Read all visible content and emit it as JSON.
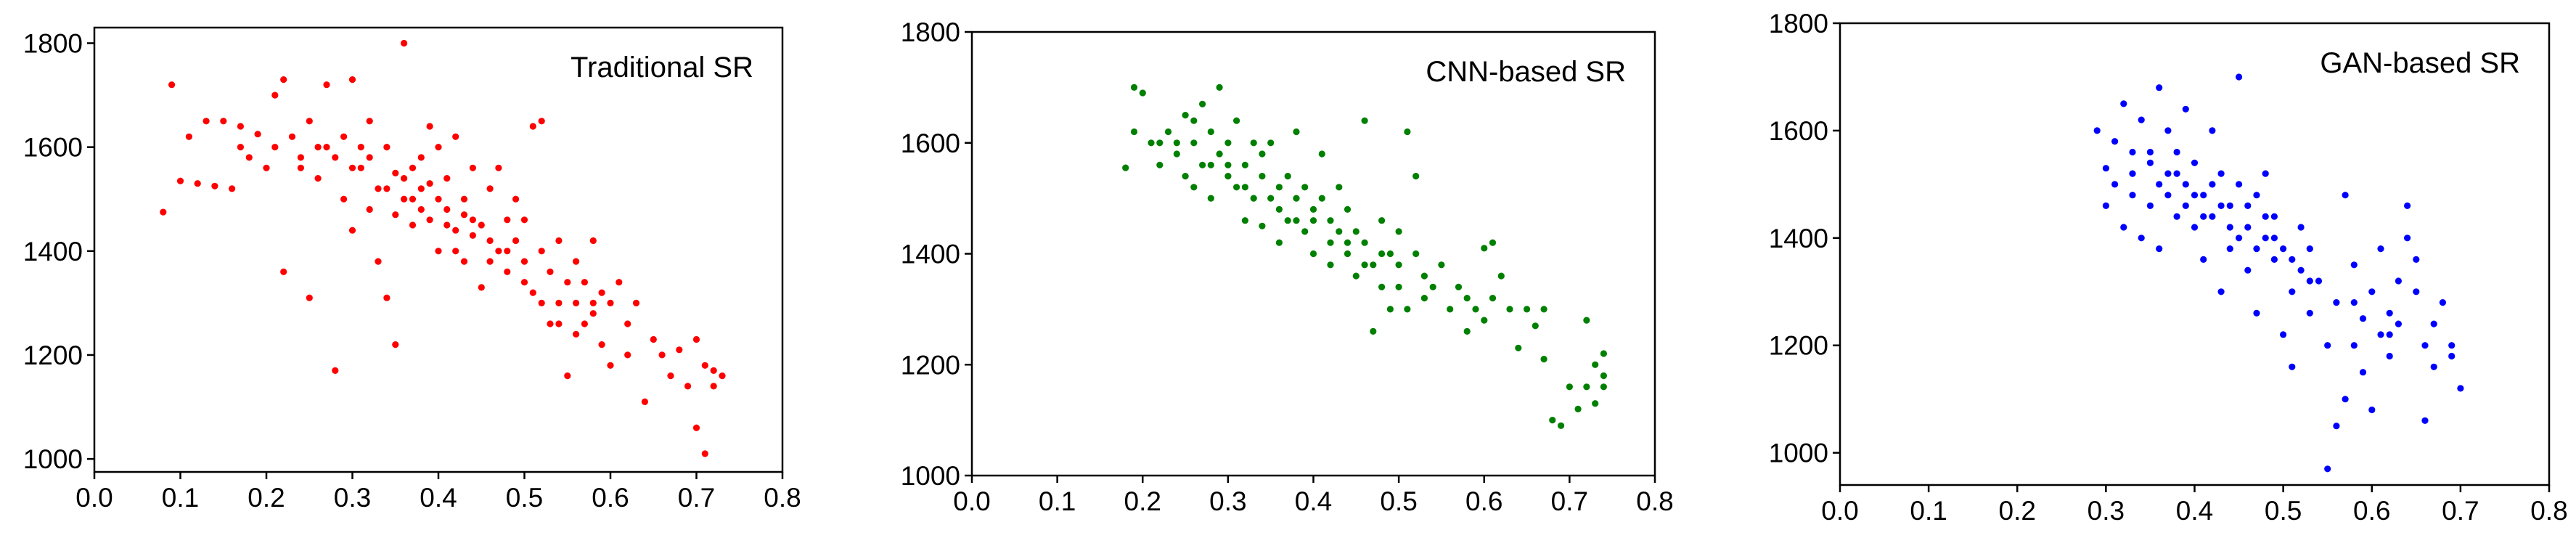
{
  "chart_data": [
    {
      "type": "scatter",
      "title": "Traditional SR",
      "color": "#ff0000",
      "xlim": [
        0.0,
        0.8
      ],
      "ylim": [
        975,
        1830
      ],
      "xticks": [
        "0.0",
        "0.1",
        "0.2",
        "0.3",
        "0.4",
        "0.5",
        "0.6",
        "0.7",
        "0.8"
      ],
      "yticks": [
        "1000",
        "1200",
        "1400",
        "1600",
        "1800"
      ],
      "points": [
        [
          0.08,
          1475
        ],
        [
          0.09,
          1720
        ],
        [
          0.1,
          1535
        ],
        [
          0.11,
          1620
        ],
        [
          0.12,
          1530
        ],
        [
          0.13,
          1650
        ],
        [
          0.14,
          1525
        ],
        [
          0.15,
          1650
        ],
        [
          0.16,
          1520
        ],
        [
          0.17,
          1640
        ],
        [
          0.17,
          1600
        ],
        [
          0.18,
          1580
        ],
        [
          0.19,
          1625
        ],
        [
          0.2,
          1560
        ],
        [
          0.21,
          1600
        ],
        [
          0.21,
          1700
        ],
        [
          0.22,
          1730
        ],
        [
          0.22,
          1360
        ],
        [
          0.23,
          1620
        ],
        [
          0.24,
          1560
        ],
        [
          0.25,
          1650
        ],
        [
          0.25,
          1310
        ],
        [
          0.26,
          1600
        ],
        [
          0.26,
          1540
        ],
        [
          0.27,
          1720
        ],
        [
          0.28,
          1580
        ],
        [
          0.28,
          1170
        ],
        [
          0.29,
          1620
        ],
        [
          0.29,
          1500
        ],
        [
          0.3,
          1730
        ],
        [
          0.3,
          1440
        ],
        [
          0.31,
          1600
        ],
        [
          0.31,
          1560
        ],
        [
          0.32,
          1480
        ],
        [
          0.32,
          1650
        ],
        [
          0.33,
          1520
        ],
        [
          0.33,
          1380
        ],
        [
          0.34,
          1600
        ],
        [
          0.34,
          1310
        ],
        [
          0.35,
          1550
        ],
        [
          0.35,
          1220
        ],
        [
          0.36,
          1800
        ],
        [
          0.36,
          1500
        ],
        [
          0.37,
          1560
        ],
        [
          0.37,
          1450
        ],
        [
          0.38,
          1580
        ],
        [
          0.38,
          1520
        ],
        [
          0.39,
          1640
        ],
        [
          0.39,
          1460
        ],
        [
          0.4,
          1600
        ],
        [
          0.4,
          1400
        ],
        [
          0.41,
          1540
        ],
        [
          0.41,
          1480
        ],
        [
          0.42,
          1620
        ],
        [
          0.42,
          1440
        ],
        [
          0.43,
          1500
        ],
        [
          0.43,
          1380
        ],
        [
          0.44,
          1560
        ],
        [
          0.44,
          1460
        ],
        [
          0.45,
          1450
        ],
        [
          0.45,
          1330
        ],
        [
          0.46,
          1520
        ],
        [
          0.46,
          1420
        ],
        [
          0.47,
          1400
        ],
        [
          0.47,
          1560
        ],
        [
          0.48,
          1460
        ],
        [
          0.48,
          1360
        ],
        [
          0.49,
          1420
        ],
        [
          0.49,
          1500
        ],
        [
          0.5,
          1380
        ],
        [
          0.5,
          1460
        ],
        [
          0.51,
          1640
        ],
        [
          0.51,
          1320
        ],
        [
          0.52,
          1400
        ],
        [
          0.52,
          1650
        ],
        [
          0.53,
          1360
        ],
        [
          0.53,
          1260
        ],
        [
          0.54,
          1420
        ],
        [
          0.54,
          1300
        ],
        [
          0.55,
          1340
        ],
        [
          0.55,
          1160
        ],
        [
          0.56,
          1300
        ],
        [
          0.56,
          1380
        ],
        [
          0.57,
          1260
        ],
        [
          0.57,
          1340
        ],
        [
          0.58,
          1280
        ],
        [
          0.58,
          1420
        ],
        [
          0.59,
          1320
        ],
        [
          0.59,
          1220
        ],
        [
          0.6,
          1300
        ],
        [
          0.6,
          1180
        ],
        [
          0.61,
          1340
        ],
        [
          0.62,
          1260
        ],
        [
          0.62,
          1200
        ],
        [
          0.63,
          1300
        ],
        [
          0.64,
          1110
        ],
        [
          0.65,
          1230
        ],
        [
          0.66,
          1200
        ],
        [
          0.67,
          1160
        ],
        [
          0.68,
          1210
        ],
        [
          0.69,
          1140
        ],
        [
          0.7,
          1060
        ],
        [
          0.7,
          1230
        ],
        [
          0.71,
          1010
        ],
        [
          0.71,
          1180
        ],
        [
          0.72,
          1140
        ],
        [
          0.72,
          1170
        ],
        [
          0.73,
          1160
        ],
        [
          0.44,
          1430
        ],
        [
          0.46,
          1380
        ],
        [
          0.4,
          1500
        ],
        [
          0.38,
          1480
        ],
        [
          0.42,
          1400
        ],
        [
          0.36,
          1540
        ],
        [
          0.34,
          1520
        ],
        [
          0.3,
          1560
        ],
        [
          0.27,
          1600
        ],
        [
          0.24,
          1580
        ],
        [
          0.32,
          1580
        ],
        [
          0.48,
          1400
        ],
        [
          0.5,
          1340
        ],
        [
          0.52,
          1300
        ],
        [
          0.54,
          1260
        ],
        [
          0.56,
          1240
        ],
        [
          0.58,
          1300
        ],
        [
          0.43,
          1470
        ],
        [
          0.41,
          1450
        ],
        [
          0.39,
          1530
        ],
        [
          0.37,
          1500
        ],
        [
          0.35,
          1470
        ]
      ]
    },
    {
      "type": "scatter",
      "title": "CNN-based SR",
      "color": "#008000",
      "xlim": [
        0.0,
        0.8
      ],
      "ylim": [
        1000,
        1800
      ],
      "xticks": [
        "0.0",
        "0.1",
        "0.2",
        "0.3",
        "0.4",
        "0.5",
        "0.6",
        "0.7",
        "0.8"
      ],
      "yticks": [
        "1000",
        "1200",
        "1400",
        "1600",
        "1800"
      ],
      "points": [
        [
          0.18,
          1555
        ],
        [
          0.19,
          1620
        ],
        [
          0.19,
          1700
        ],
        [
          0.2,
          1690
        ],
        [
          0.21,
          1600
        ],
        [
          0.22,
          1560
        ],
        [
          0.23,
          1620
        ],
        [
          0.24,
          1580
        ],
        [
          0.25,
          1540
        ],
        [
          0.25,
          1650
        ],
        [
          0.26,
          1520
        ],
        [
          0.26,
          1600
        ],
        [
          0.27,
          1560
        ],
        [
          0.27,
          1670
        ],
        [
          0.28,
          1500
        ],
        [
          0.28,
          1620
        ],
        [
          0.29,
          1580
        ],
        [
          0.29,
          1700
        ],
        [
          0.3,
          1540
        ],
        [
          0.3,
          1600
        ],
        [
          0.31,
          1520
        ],
        [
          0.31,
          1640
        ],
        [
          0.32,
          1560
        ],
        [
          0.32,
          1460
        ],
        [
          0.33,
          1500
        ],
        [
          0.33,
          1600
        ],
        [
          0.34,
          1540
        ],
        [
          0.34,
          1450
        ],
        [
          0.35,
          1500
        ],
        [
          0.35,
          1600
        ],
        [
          0.36,
          1480
        ],
        [
          0.36,
          1420
        ],
        [
          0.37,
          1540
        ],
        [
          0.37,
          1460
        ],
        [
          0.38,
          1500
        ],
        [
          0.38,
          1620
        ],
        [
          0.39,
          1440
        ],
        [
          0.39,
          1520
        ],
        [
          0.4,
          1480
        ],
        [
          0.4,
          1400
        ],
        [
          0.41,
          1500
        ],
        [
          0.41,
          1580
        ],
        [
          0.42,
          1460
        ],
        [
          0.42,
          1380
        ],
        [
          0.43,
          1440
        ],
        [
          0.43,
          1520
        ],
        [
          0.44,
          1400
        ],
        [
          0.44,
          1480
        ],
        [
          0.45,
          1360
        ],
        [
          0.45,
          1440
        ],
        [
          0.46,
          1640
        ],
        [
          0.46,
          1420
        ],
        [
          0.47,
          1260
        ],
        [
          0.47,
          1380
        ],
        [
          0.48,
          1340
        ],
        [
          0.48,
          1460
        ],
        [
          0.49,
          1300
        ],
        [
          0.49,
          1400
        ],
        [
          0.5,
          1440
        ],
        [
          0.5,
          1340
        ],
        [
          0.51,
          1620
        ],
        [
          0.51,
          1300
        ],
        [
          0.52,
          1540
        ],
        [
          0.52,
          1400
        ],
        [
          0.53,
          1360
        ],
        [
          0.53,
          1320
        ],
        [
          0.54,
          1340
        ],
        [
          0.55,
          1380
        ],
        [
          0.56,
          1300
        ],
        [
          0.57,
          1340
        ],
        [
          0.58,
          1320
        ],
        [
          0.58,
          1260
        ],
        [
          0.59,
          1300
        ],
        [
          0.6,
          1280
        ],
        [
          0.6,
          1410
        ],
        [
          0.61,
          1420
        ],
        [
          0.61,
          1320
        ],
        [
          0.62,
          1360
        ],
        [
          0.63,
          1300
        ],
        [
          0.64,
          1230
        ],
        [
          0.65,
          1300
        ],
        [
          0.66,
          1270
        ],
        [
          0.67,
          1210
        ],
        [
          0.67,
          1300
        ],
        [
          0.68,
          1100
        ],
        [
          0.69,
          1090
        ],
        [
          0.7,
          1160
        ],
        [
          0.71,
          1120
        ],
        [
          0.72,
          1280
        ],
        [
          0.72,
          1160
        ],
        [
          0.73,
          1200
        ],
        [
          0.73,
          1130
        ],
        [
          0.74,
          1180
        ],
        [
          0.74,
          1160
        ],
        [
          0.74,
          1220
        ],
        [
          0.3,
          1560
        ],
        [
          0.32,
          1520
        ],
        [
          0.36,
          1520
        ],
        [
          0.4,
          1460
        ],
        [
          0.42,
          1420
        ],
        [
          0.44,
          1420
        ],
        [
          0.38,
          1460
        ],
        [
          0.34,
          1580
        ],
        [
          0.28,
          1560
        ],
        [
          0.26,
          1640
        ],
        [
          0.24,
          1600
        ],
        [
          0.22,
          1600
        ],
        [
          0.46,
          1380
        ],
        [
          0.48,
          1400
        ],
        [
          0.5,
          1380
        ]
      ]
    },
    {
      "type": "scatter",
      "title": "GAN-based SR",
      "color": "#0000ff",
      "xlim": [
        0.0,
        0.8
      ],
      "ylim": [
        940,
        1800
      ],
      "xticks": [
        "0.0",
        "0.1",
        "0.2",
        "0.3",
        "0.4",
        "0.5",
        "0.6",
        "0.7",
        "0.8"
      ],
      "yticks": [
        "1000",
        "1200",
        "1400",
        "1600",
        "1800"
      ],
      "points": [
        [
          0.29,
          1600
        ],
        [
          0.3,
          1530
        ],
        [
          0.3,
          1460
        ],
        [
          0.31,
          1580
        ],
        [
          0.31,
          1500
        ],
        [
          0.32,
          1650
        ],
        [
          0.32,
          1420
        ],
        [
          0.33,
          1560
        ],
        [
          0.33,
          1480
        ],
        [
          0.34,
          1620
        ],
        [
          0.34,
          1400
        ],
        [
          0.35,
          1540
        ],
        [
          0.35,
          1460
        ],
        [
          0.36,
          1680
        ],
        [
          0.36,
          1380
        ],
        [
          0.37,
          1520
        ],
        [
          0.37,
          1600
        ],
        [
          0.38,
          1440
        ],
        [
          0.38,
          1560
        ],
        [
          0.39,
          1500
        ],
        [
          0.39,
          1640
        ],
        [
          0.4,
          1420
        ],
        [
          0.4,
          1540
        ],
        [
          0.41,
          1480
        ],
        [
          0.41,
          1360
        ],
        [
          0.42,
          1600
        ],
        [
          0.42,
          1440
        ],
        [
          0.43,
          1520
        ],
        [
          0.43,
          1300
        ],
        [
          0.44,
          1460
        ],
        [
          0.44,
          1380
        ],
        [
          0.45,
          1700
        ],
        [
          0.45,
          1500
        ],
        [
          0.46,
          1420
        ],
        [
          0.46,
          1340
        ],
        [
          0.47,
          1480
        ],
        [
          0.47,
          1260
        ],
        [
          0.48,
          1400
        ],
        [
          0.48,
          1520
        ],
        [
          0.49,
          1360
        ],
        [
          0.49,
          1440
        ],
        [
          0.5,
          1380
        ],
        [
          0.5,
          1220
        ],
        [
          0.51,
          1160
        ],
        [
          0.51,
          1300
        ],
        [
          0.52,
          1420
        ],
        [
          0.52,
          1340
        ],
        [
          0.53,
          1260
        ],
        [
          0.53,
          1380
        ],
        [
          0.54,
          1320
        ],
        [
          0.55,
          1200
        ],
        [
          0.55,
          970
        ],
        [
          0.56,
          1050
        ],
        [
          0.56,
          1280
        ],
        [
          0.57,
          1100
        ],
        [
          0.57,
          1480
        ],
        [
          0.58,
          1350
        ],
        [
          0.58,
          1200
        ],
        [
          0.59,
          1250
        ],
        [
          0.59,
          1150
        ],
        [
          0.6,
          1300
        ],
        [
          0.6,
          1080
        ],
        [
          0.61,
          1220
        ],
        [
          0.61,
          1380
        ],
        [
          0.62,
          1180
        ],
        [
          0.62,
          1260
        ],
        [
          0.63,
          1320
        ],
        [
          0.63,
          1240
        ],
        [
          0.64,
          1400
        ],
        [
          0.64,
          1460
        ],
        [
          0.65,
          1360
        ],
        [
          0.65,
          1300
        ],
        [
          0.66,
          1060
        ],
        [
          0.66,
          1200
        ],
        [
          0.67,
          1240
        ],
        [
          0.67,
          1160
        ],
        [
          0.68,
          1280
        ],
        [
          0.69,
          1200
        ],
        [
          0.69,
          1180
        ],
        [
          0.7,
          1120
        ],
        [
          0.4,
          1480
        ],
        [
          0.42,
          1500
        ],
        [
          0.44,
          1420
        ],
        [
          0.38,
          1520
        ],
        [
          0.36,
          1500
        ],
        [
          0.46,
          1460
        ],
        [
          0.48,
          1440
        ],
        [
          0.41,
          1440
        ],
        [
          0.43,
          1460
        ],
        [
          0.39,
          1460
        ],
        [
          0.37,
          1480
        ],
        [
          0.35,
          1560
        ],
        [
          0.33,
          1520
        ],
        [
          0.45,
          1400
        ],
        [
          0.47,
          1380
        ],
        [
          0.49,
          1400
        ],
        [
          0.51,
          1360
        ],
        [
          0.53,
          1320
        ],
        [
          0.58,
          1280
        ],
        [
          0.62,
          1220
        ]
      ]
    }
  ]
}
